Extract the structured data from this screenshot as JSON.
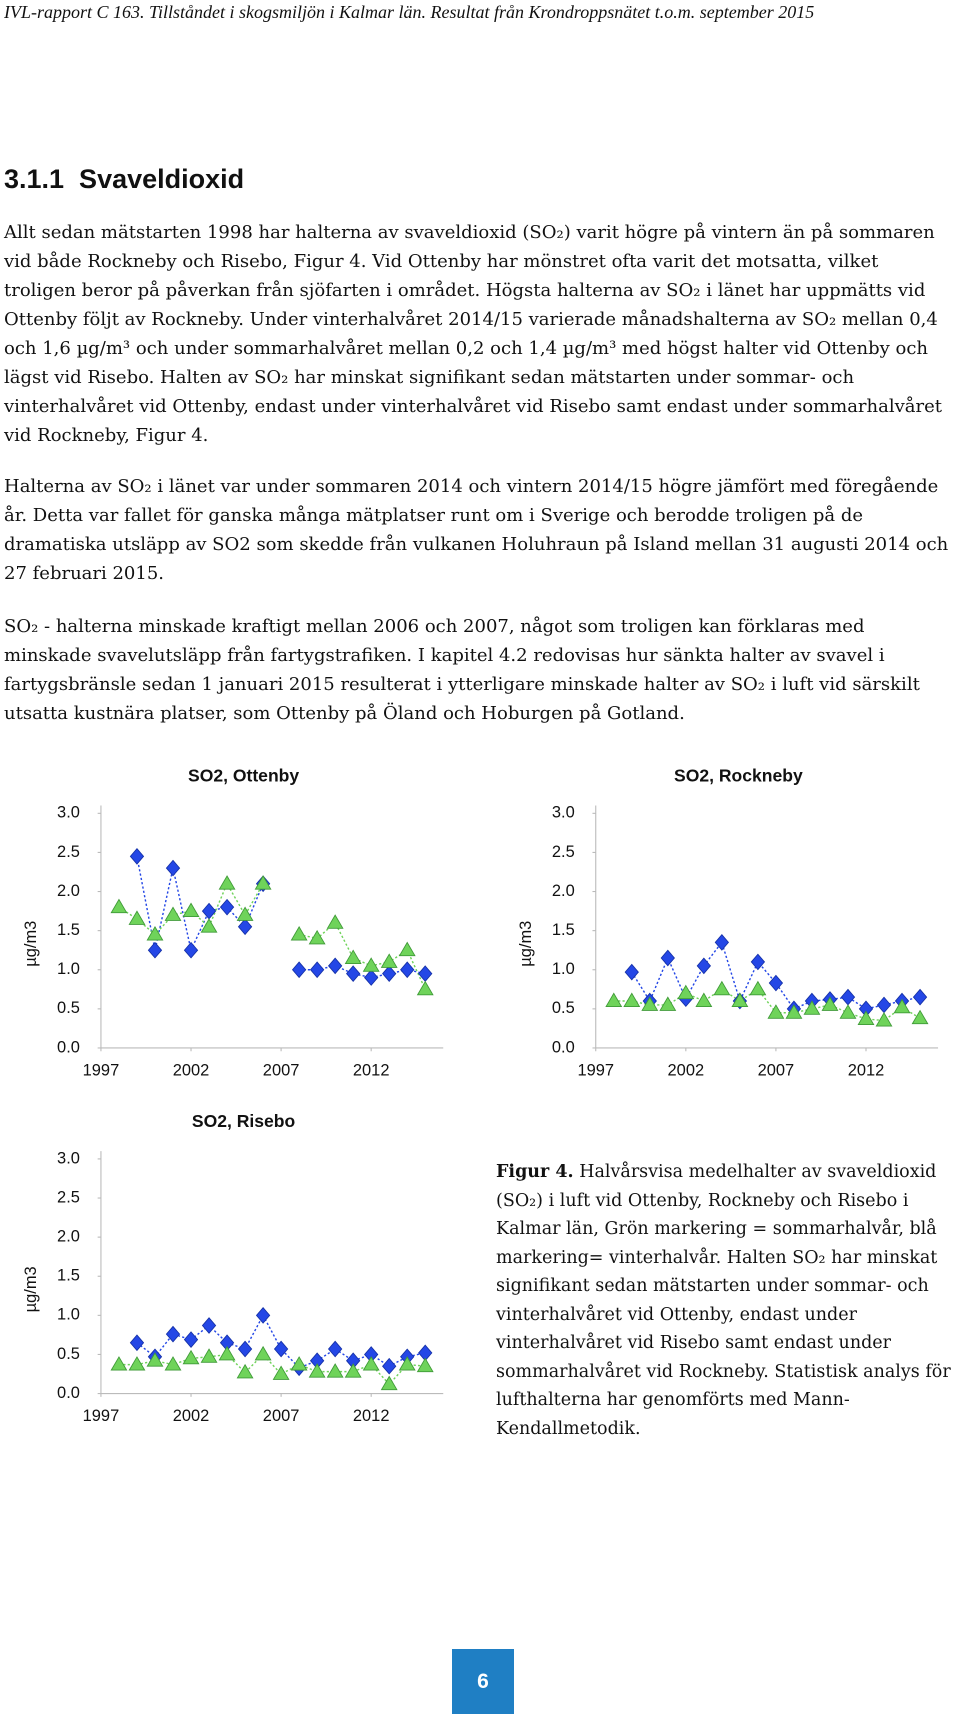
{
  "header": "IVL-rapport C 163. Tillståndet i skogsmiljön i Kalmar län. Resultat från Krondroppsnätet t.o.m. september 2015",
  "heading": "3.1.1  Svaveldioxid",
  "paragraphs": [
    "Allt sedan mätstarten 1998 har halterna av svaveldioxid (SO₂) varit högre på vintern än på sommaren vid både Rockneby och Risebo, Figur 4. Vid Ottenby har mönstret ofta varit det motsatta, vilket troligen beror på påverkan från sjöfarten i området. Högsta halterna av SO₂ i länet har uppmätts vid Ottenby följt av Rockneby. Under vinterhalvåret 2014/15 varierade månadshalterna av SO₂ mellan 0,4 och 1,6 µg/m³ och under sommarhalvåret mellan 0,2 och 1,4 µg/m³ med högst halter vid Ottenby och lägst vid Risebo. Halten av SO₂ har minskat signifikant sedan mätstarten under sommar- och vinterhalvåret vid Ottenby, endast under vinterhalvåret vid Risebo samt endast under sommarhalvåret vid Rockneby, Figur 4.",
    "Halterna av SO₂ i länet var under sommaren 2014 och vintern 2014/15 högre jämfört med föregående år. Detta var fallet för ganska många mätplatser runt om i Sverige och berodde troligen på de dramatiska utsläpp av SO2 som skedde från vulkanen Holuhraun på Island mellan 31 augusti 2014 och 27 februari 2015.",
    "SO₂ - halterna minskade kraftigt mellan 2006 och 2007, något som troligen kan förklaras med minskade svavelutsläpp från fartygstrafiken. I kapitel 4.2 redovisas hur sänkta halter av svavel i fartygsbränsle sedan 1 januari 2015 resulterat i ytterligare minskade halter av SO₂ i luft vid särskilt utsatta kustnära platser, som Ottenby på Öland och Hoburgen på Gotland."
  ],
  "chart_data": [
    {
      "type": "line",
      "title": "SO2, Ottenby",
      "y_label": "µg/m3",
      "x": [
        1998,
        1999,
        2000,
        2001,
        2002,
        2003,
        2004,
        2005,
        2006,
        2007,
        2008,
        2009,
        2010,
        2011,
        2012,
        2013,
        2014,
        2015
      ],
      "xlim": [
        1997,
        2016
      ],
      "xticks": [
        1997,
        2002,
        2007,
        2012
      ],
      "ylim": [
        0,
        3.1
      ],
      "yticks": [
        {
          "value": 0,
          "label": "0.0"
        },
        0.5,
        {
          "value": 1,
          "label": "1.0"
        },
        1.5,
        {
          "value": 2,
          "label": "2.0"
        },
        2.5,
        {
          "value": 3,
          "label": "3.0"
        }
      ],
      "series": [
        {
          "color": "#2447e6",
          "marker": "diamond",
          "values": [
            null,
            2.45,
            1.25,
            2.3,
            1.25,
            1.75,
            1.8,
            1.55,
            2.1,
            null,
            1.0,
            1.0,
            1.05,
            0.95,
            0.9,
            0.95,
            1.0,
            0.95
          ]
        },
        {
          "color": "#6fd35a",
          "marker": "triangle",
          "values": [
            1.8,
            1.65,
            1.45,
            1.7,
            1.75,
            1.55,
            2.1,
            1.7,
            2.1,
            null,
            1.45,
            1.4,
            1.6,
            1.15,
            1.05,
            1.1,
            1.25,
            0.75
          ]
        }
      ]
    },
    {
      "type": "line",
      "title": "SO2, Rockneby",
      "y_label": "µg/m3",
      "x": [
        1998,
        1999,
        2000,
        2001,
        2002,
        2003,
        2004,
        2005,
        2006,
        2007,
        2008,
        2009,
        2010,
        2011,
        2012,
        2013,
        2014,
        2015
      ],
      "xlim": [
        1997,
        2016
      ],
      "xticks": [
        1997,
        2002,
        2007,
        2012
      ],
      "ylim": [
        0,
        3.1
      ],
      "yticks": [
        {
          "value": 0,
          "label": "0.0"
        },
        0.5,
        {
          "value": 1,
          "label": "1.0"
        },
        1.5,
        {
          "value": 2,
          "label": "2.0"
        },
        2.5,
        {
          "value": 3,
          "label": "3.0"
        }
      ],
      "series": [
        {
          "color": "#2447e6",
          "marker": "diamond",
          "values": [
            null,
            0.97,
            0.6,
            1.15,
            0.63,
            1.05,
            1.35,
            0.6,
            1.1,
            0.83,
            0.5,
            0.6,
            0.62,
            0.65,
            0.5,
            0.55,
            0.6,
            0.65
          ]
        },
        {
          "color": "#6fd35a",
          "marker": "triangle",
          "values": [
            0.6,
            0.6,
            0.55,
            0.55,
            0.7,
            0.6,
            0.75,
            0.6,
            0.75,
            0.45,
            0.45,
            0.5,
            0.55,
            0.45,
            0.37,
            0.35,
            0.52,
            0.38
          ]
        }
      ]
    },
    {
      "type": "line",
      "title": "SO2, Risebo",
      "y_label": "µg/m3",
      "x": [
        1998,
        1999,
        2000,
        2001,
        2002,
        2003,
        2004,
        2005,
        2006,
        2007,
        2008,
        2009,
        2010,
        2011,
        2012,
        2013,
        2014,
        2015
      ],
      "xlim": [
        1997,
        2016
      ],
      "xticks": [
        1997,
        2002,
        2007,
        2012
      ],
      "ylim": [
        0,
        3.1
      ],
      "yticks": [
        {
          "value": 0,
          "label": "0.0"
        },
        0.5,
        {
          "value": 1,
          "label": "1.0"
        },
        1.5,
        {
          "value": 2,
          "label": "2.0"
        },
        2.5,
        {
          "value": 3,
          "label": "3.0"
        }
      ],
      "series": [
        {
          "color": "#2447e6",
          "marker": "diamond",
          "values": [
            null,
            0.65,
            0.47,
            0.76,
            0.69,
            0.87,
            0.65,
            0.57,
            1.0,
            0.57,
            0.33,
            0.42,
            0.57,
            0.42,
            0.5,
            0.35,
            0.47,
            0.52
          ]
        },
        {
          "color": "#6fd35a",
          "marker": "triangle",
          "values": [
            0.37,
            0.37,
            0.42,
            0.37,
            0.45,
            0.47,
            0.5,
            0.27,
            0.5,
            0.25,
            0.37,
            0.28,
            0.28,
            0.28,
            0.37,
            0.12,
            0.37,
            0.35
          ]
        }
      ]
    }
  ],
  "figure_caption": {
    "label": "Figur 4.",
    "text": "Halvårsvisa medelhalter av svaveldioxid (SO₂) i luft vid Ottenby, Rockneby och Risebo i Kalmar län, Grön markering = sommarhalvår, blå markering= vinterhalvår. Halten SO₂ har minskat signifikant sedan mätstarten under sommar- och vinterhalvåret vid Ottenby, endast under vinterhalvåret vid Risebo samt endast under sommarhalvåret vid Rockneby. Statistisk analys för lufthalterna har genomförts med Mann-Kendallmetodik."
  },
  "page_number": "6"
}
